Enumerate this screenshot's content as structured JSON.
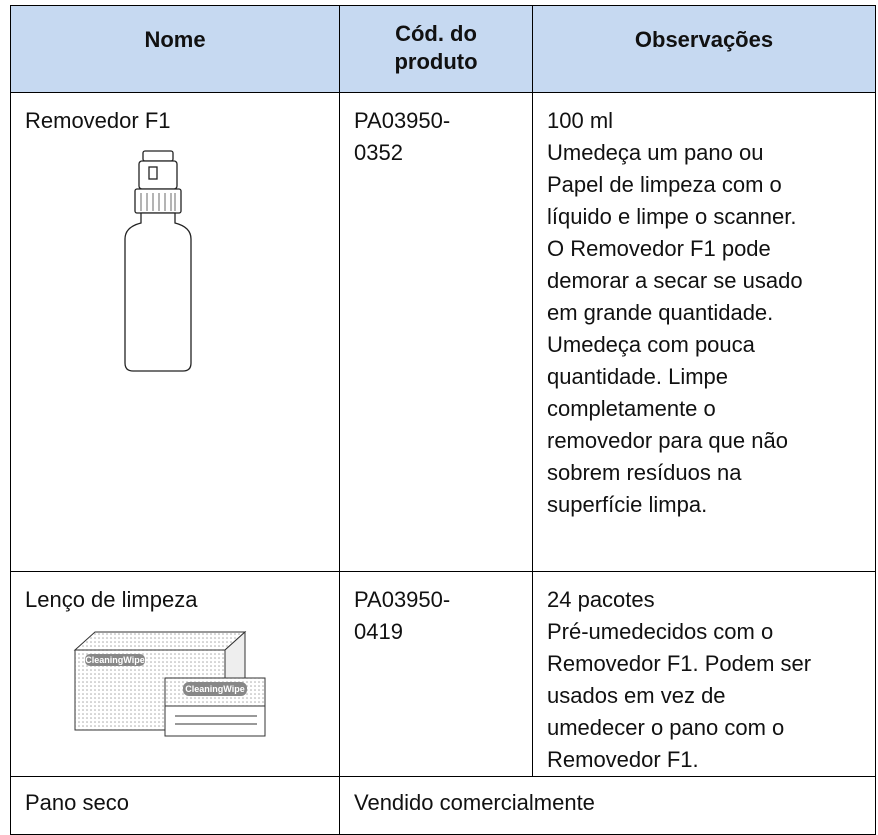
{
  "table": {
    "header": [
      "Nome",
      [
        "Cód. do",
        "produto"
      ],
      "Observações"
    ],
    "rows": [
      {
        "name": "Removedor F1",
        "code": [
          "PA03950-",
          "0352"
        ],
        "notes": [
          "100 ml",
          "Umedeça um pano ou",
          "Papel de limpeza com o",
          "líquido e limpe o scanner.",
          "O Removedor F1 pode",
          "demorar a secar se usado",
          "em grande quantidade.",
          "Umedeça com pouca",
          "quantidade. Limpe",
          "completamente o",
          "removedor para que não",
          "sobrem resíduos na",
          "superfície limpa."
        ]
      },
      {
        "name": "Lenço de limpeza",
        "code": [
          "PA03950-",
          "0419"
        ],
        "notes": [
          "24 pacotes",
          "Pré-umedecidos com o",
          "Removedor F1. Podem ser",
          "usados em vez de",
          "umedecer o pano com o",
          "Removedor F1."
        ]
      },
      {
        "name": "Pano seco",
        "merged": "Vendido comercialmente"
      }
    ],
    "wipe_label": "CleaningWipe"
  }
}
